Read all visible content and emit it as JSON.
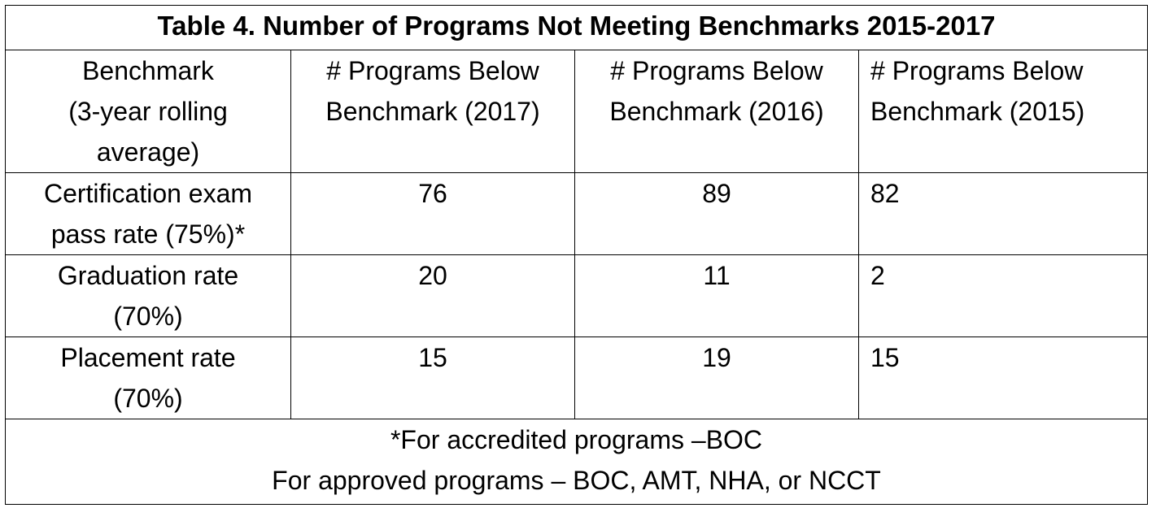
{
  "table": {
    "title": "Table 4. Number of Programs Not Meeting Benchmarks 2015-2017",
    "headers": [
      {
        "line1": "Benchmark",
        "line2": "(3-year rolling",
        "line3": "average)"
      },
      {
        "line1": "# Programs Below",
        "line2": "Benchmark (2017)"
      },
      {
        "line1": "# Programs Below",
        "line2": "Benchmark (2016)"
      },
      {
        "line1": "# Programs Below",
        "line2": "Benchmark (2015)"
      }
    ],
    "rows": [
      {
        "label1": "Certification exam",
        "label2": "pass rate (75%)*",
        "v2017": "76",
        "v2016": "89",
        "v2015": "82"
      },
      {
        "label1": "Graduation rate",
        "label2": "(70%)",
        "v2017": "20",
        "v2016": "11",
        "v2015": "2"
      },
      {
        "label1": "Placement rate",
        "label2": "(70%)",
        "v2017": "15",
        "v2016": "19",
        "v2015": "15"
      }
    ],
    "footnote": {
      "line1": "*For accredited programs –BOC",
      "line2": "For approved programs – BOC, AMT, NHA, or NCCT"
    }
  }
}
